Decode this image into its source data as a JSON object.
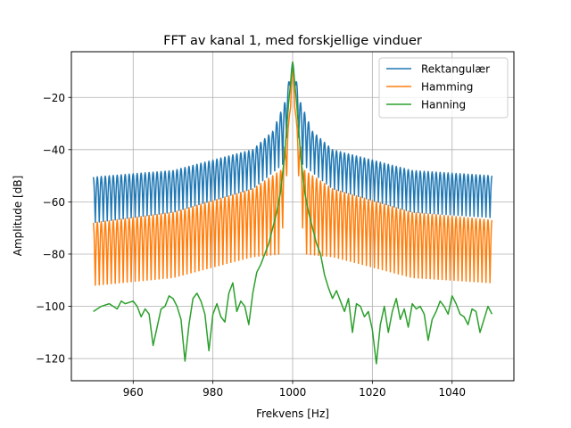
{
  "chart_data": {
    "type": "line",
    "title": "FFT av kanal 1, med forskjellige vinduer",
    "xlabel": "Frekvens [Hz]",
    "ylabel": "Amplitude [dB]",
    "xlim": [
      944.5,
      1055.5
    ],
    "ylim": [
      -128.5,
      -2.5
    ],
    "xticks": [
      960,
      980,
      1000,
      1020,
      1040
    ],
    "xtick_labels": [
      "960",
      "980",
      "1000",
      "1020",
      "1040"
    ],
    "yticks": [
      -120,
      -100,
      -80,
      -60,
      -40,
      -20
    ],
    "ytick_labels": [
      "−120",
      "−100",
      "−80",
      "−60",
      "−40",
      "−20"
    ],
    "grid": true,
    "legend_position": "top-right",
    "x_range": [
      950,
      1050
    ],
    "peak": {
      "x": 1000,
      "y": -6.5
    },
    "series": [
      {
        "name": "Rektangulær",
        "color": "#1f77b4",
        "envelope_max": [
          [
            950,
            -50.5
          ],
          [
            970,
            -48
          ],
          [
            990,
            -40
          ],
          [
            995,
            -33
          ],
          [
            998,
            -22
          ],
          [
            1000,
            -6.5
          ],
          [
            1002,
            -22
          ],
          [
            1005,
            -33
          ],
          [
            1010,
            -40
          ],
          [
            1030,
            -48
          ],
          [
            1050,
            -50
          ]
        ],
        "envelope_min": [
          [
            950,
            -68
          ],
          [
            970,
            -64
          ],
          [
            990,
            -55
          ],
          [
            998,
            -45
          ],
          [
            1000,
            -6.5
          ],
          [
            1002,
            -45
          ],
          [
            1010,
            -55
          ],
          [
            1030,
            -64
          ],
          [
            1050,
            -66
          ]
        ]
      },
      {
        "name": "Hamming",
        "color": "#ff7f0e",
        "envelope_max": [
          [
            950,
            -68
          ],
          [
            970,
            -64
          ],
          [
            990,
            -55
          ],
          [
            997,
            -48
          ],
          [
            999,
            -30
          ],
          [
            1000,
            -6.5
          ],
          [
            1001,
            -30
          ],
          [
            1003,
            -48
          ],
          [
            1010,
            -55
          ],
          [
            1030,
            -64
          ],
          [
            1050,
            -67
          ]
        ],
        "envelope_min": [
          [
            950,
            -92
          ],
          [
            970,
            -89
          ],
          [
            990,
            -81
          ],
          [
            997,
            -80
          ],
          [
            999,
            -40
          ],
          [
            1000,
            -6.5
          ],
          [
            1001,
            -40
          ],
          [
            1003,
            -80
          ],
          [
            1010,
            -81
          ],
          [
            1030,
            -89
          ],
          [
            1050,
            -91
          ]
        ]
      },
      {
        "name": "Hanning",
        "color": "#2ca02c",
        "points": [
          [
            950,
            -102
          ],
          [
            952,
            -100
          ],
          [
            954,
            -99
          ],
          [
            956,
            -101
          ],
          [
            957,
            -98
          ],
          [
            958,
            -99
          ],
          [
            960,
            -98
          ],
          [
            961,
            -100
          ],
          [
            962,
            -104
          ],
          [
            963,
            -101
          ],
          [
            964,
            -103
          ],
          [
            965,
            -115
          ],
          [
            966,
            -108
          ],
          [
            967,
            -101
          ],
          [
            968,
            -100
          ],
          [
            969,
            -96
          ],
          [
            970,
            -97
          ],
          [
            971,
            -100
          ],
          [
            972,
            -105
          ],
          [
            973,
            -121
          ],
          [
            974,
            -107
          ],
          [
            975,
            -97
          ],
          [
            976,
            -95
          ],
          [
            977,
            -98
          ],
          [
            978,
            -103
          ],
          [
            979,
            -117
          ],
          [
            980,
            -103
          ],
          [
            981,
            -99
          ],
          [
            982,
            -104
          ],
          [
            983,
            -106
          ],
          [
            984,
            -95
          ],
          [
            985,
            -91
          ],
          [
            986,
            -102
          ],
          [
            987,
            -98
          ],
          [
            988,
            -100
          ],
          [
            989,
            -107
          ],
          [
            990,
            -95
          ],
          [
            991,
            -87
          ],
          [
            992,
            -84
          ],
          [
            993,
            -80
          ],
          [
            994,
            -76
          ],
          [
            995,
            -70
          ],
          [
            996,
            -64
          ],
          [
            997,
            -56
          ],
          [
            998,
            -42
          ],
          [
            999,
            -22
          ],
          [
            1000,
            -6.5
          ],
          [
            1001,
            -22
          ],
          [
            1002,
            -42
          ],
          [
            1003,
            -56
          ],
          [
            1004,
            -64
          ],
          [
            1005,
            -70
          ],
          [
            1006,
            -76
          ],
          [
            1007,
            -80
          ],
          [
            1008,
            -88
          ],
          [
            1009,
            -93
          ],
          [
            1010,
            -97
          ],
          [
            1011,
            -94
          ],
          [
            1012,
            -98
          ],
          [
            1013,
            -102
          ],
          [
            1014,
            -97
          ],
          [
            1015,
            -110
          ],
          [
            1016,
            -99
          ],
          [
            1017,
            -100
          ],
          [
            1018,
            -104
          ],
          [
            1019,
            -102
          ],
          [
            1020,
            -109
          ],
          [
            1021,
            -122
          ],
          [
            1022,
            -107
          ],
          [
            1023,
            -100
          ],
          [
            1024,
            -110
          ],
          [
            1025,
            -102
          ],
          [
            1026,
            -97
          ],
          [
            1027,
            -105
          ],
          [
            1028,
            -101
          ],
          [
            1029,
            -108
          ],
          [
            1030,
            -99
          ],
          [
            1031,
            -101
          ],
          [
            1032,
            -100
          ],
          [
            1033,
            -103
          ],
          [
            1034,
            -113
          ],
          [
            1035,
            -105
          ],
          [
            1036,
            -102
          ],
          [
            1037,
            -98
          ],
          [
            1038,
            -100
          ],
          [
            1039,
            -103
          ],
          [
            1040,
            -96
          ],
          [
            1041,
            -99
          ],
          [
            1042,
            -103
          ],
          [
            1043,
            -104
          ],
          [
            1044,
            -107
          ],
          [
            1045,
            -101
          ],
          [
            1046,
            -102
          ],
          [
            1047,
            -110
          ],
          [
            1048,
            -105
          ],
          [
            1049,
            -100
          ],
          [
            1050,
            -103
          ]
        ]
      }
    ]
  }
}
